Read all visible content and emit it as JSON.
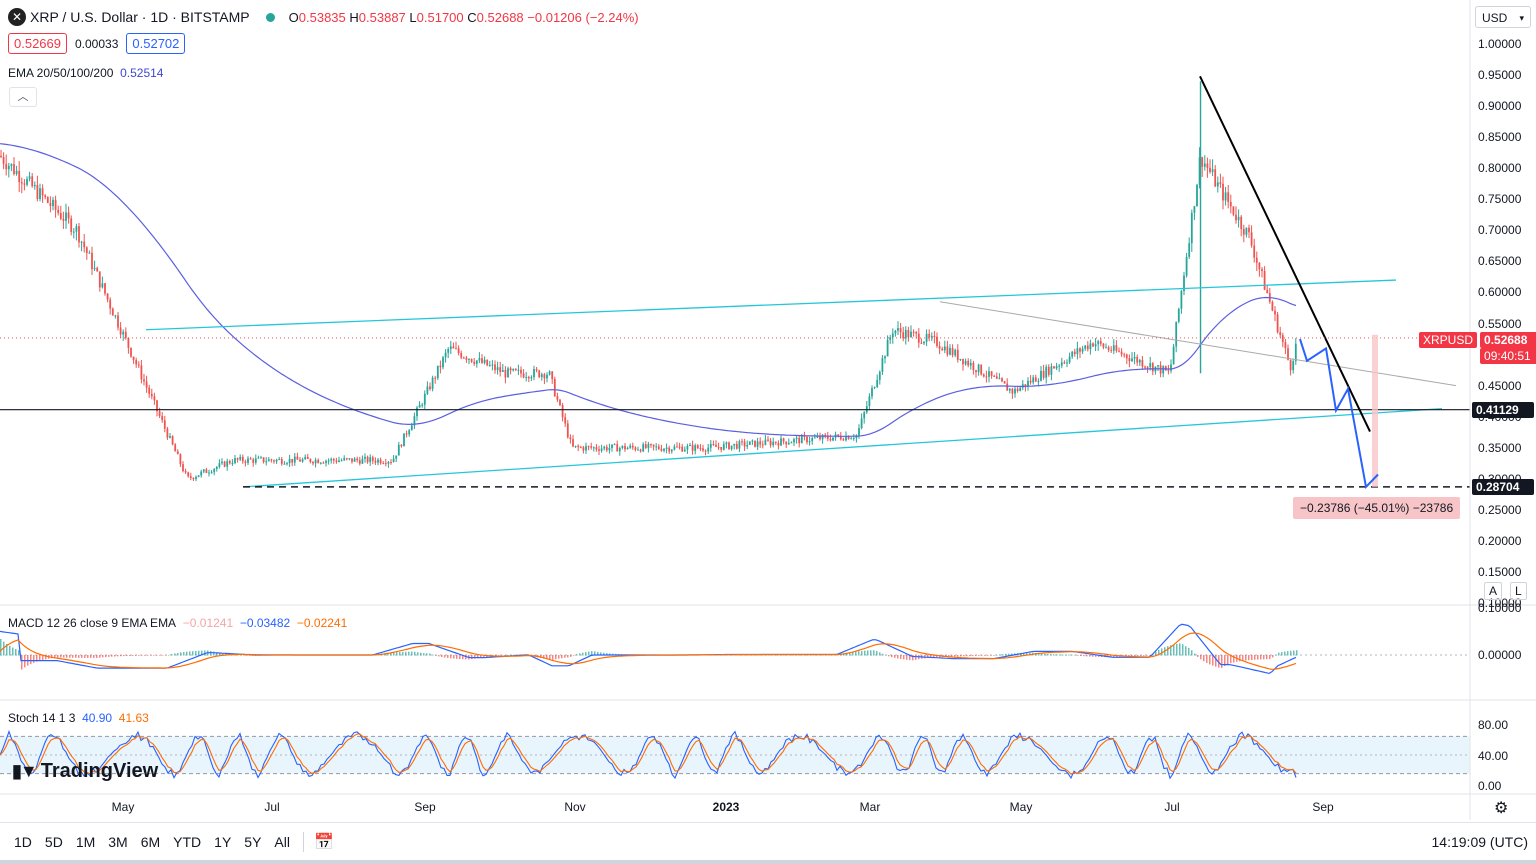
{
  "header": {
    "symbol": "XRP / U.S. Dollar · 1D · BITSTAMP",
    "o_label": "O",
    "o": "0.53835",
    "h_label": "H",
    "h": "0.53887",
    "l_label": "L",
    "l": "0.51700",
    "c_label": "C",
    "c": "0.52688",
    "change": "−0.01206 (−2.24%)",
    "bid": "0.52669",
    "spread": "0.00033",
    "ask": "0.52702",
    "ema_label": "EMA 20/50/100/200",
    "ema_value": "0.52514",
    "currency": "USD"
  },
  "colors": {
    "up": "#26a69a",
    "down": "#ef5350",
    "ema": "#5b5fe0",
    "channel": "#26c6da",
    "macd": "#2962ff",
    "signal": "#ff6d00",
    "stoch_k": "#2962ff",
    "stoch_d": "#ff6d00",
    "projection": "#2962ff",
    "price_tag": "#f23645"
  },
  "tags": {
    "symbol_tag": "XRPUSD",
    "price_tag": "0.52688",
    "countdown": "09:40:51",
    "support_tag": "0.41129",
    "low_tag": "0.28704",
    "measure": "−0.23786 (−45.01%) −23786"
  },
  "macd": {
    "label": "MACD 12 26 close 9 EMA EMA",
    "v1": "−0.01241",
    "v2": "−0.03482",
    "v3": "−0.02241",
    "ticks": [
      "0.10000",
      "0.00000"
    ]
  },
  "stoch": {
    "label": "Stoch 14 1 3",
    "k": "40.90",
    "d": "41.63",
    "ticks": [
      "80.00",
      "40.00",
      "0.00"
    ]
  },
  "x_labels": [
    "May",
    "Jul",
    "Sep",
    "Nov",
    "2023",
    "Mar",
    "May",
    "Jul",
    "Sep"
  ],
  "timeframes": [
    "1D",
    "5D",
    "1M",
    "3M",
    "6M",
    "YTD",
    "1Y",
    "5Y",
    "All"
  ],
  "clock": "14:19:09 (UTC)",
  "brand": "TradingView",
  "scale_buttons": [
    "A",
    "L"
  ],
  "chart_data": {
    "type": "line",
    "title": "XRP / U.S. Dollar · 1D · BITSTAMP",
    "xlabel": "",
    "ylabel": "",
    "ylim": [
      0.1,
      1.0
    ],
    "y_ticks": [
      "1.00000",
      "0.95000",
      "0.90000",
      "0.85000",
      "0.80000",
      "0.75000",
      "0.70000",
      "0.65000",
      "0.60000",
      "0.55000",
      "0.45000",
      "0.40000",
      "0.35000",
      "0.30000",
      "0.25000",
      "0.20000",
      "0.15000",
      "0.10000"
    ],
    "x": [
      "2022-04-01",
      "2022-05-01",
      "2022-06-13",
      "2022-07-01",
      "2022-09-01",
      "2022-09-23",
      "2022-10-15",
      "2022-11-01",
      "2022-11-10",
      "2023-01-01",
      "2023-03-01",
      "2023-03-15",
      "2023-04-01",
      "2023-05-01",
      "2023-06-01",
      "2023-07-01",
      "2023-07-13",
      "2023-07-20",
      "2023-08-01",
      "2023-08-17",
      "2023-08-20"
    ],
    "series": [
      {
        "values": [
          0.82,
          0.7,
          0.3,
          0.33,
          0.33,
          0.51,
          0.47,
          0.47,
          0.35,
          0.35,
          0.37,
          0.54,
          0.52,
          0.44,
          0.52,
          0.47,
          0.82,
          0.77,
          0.69,
          0.48,
          0.527
        ]
      }
    ],
    "grid": true,
    "legend": "none"
  }
}
